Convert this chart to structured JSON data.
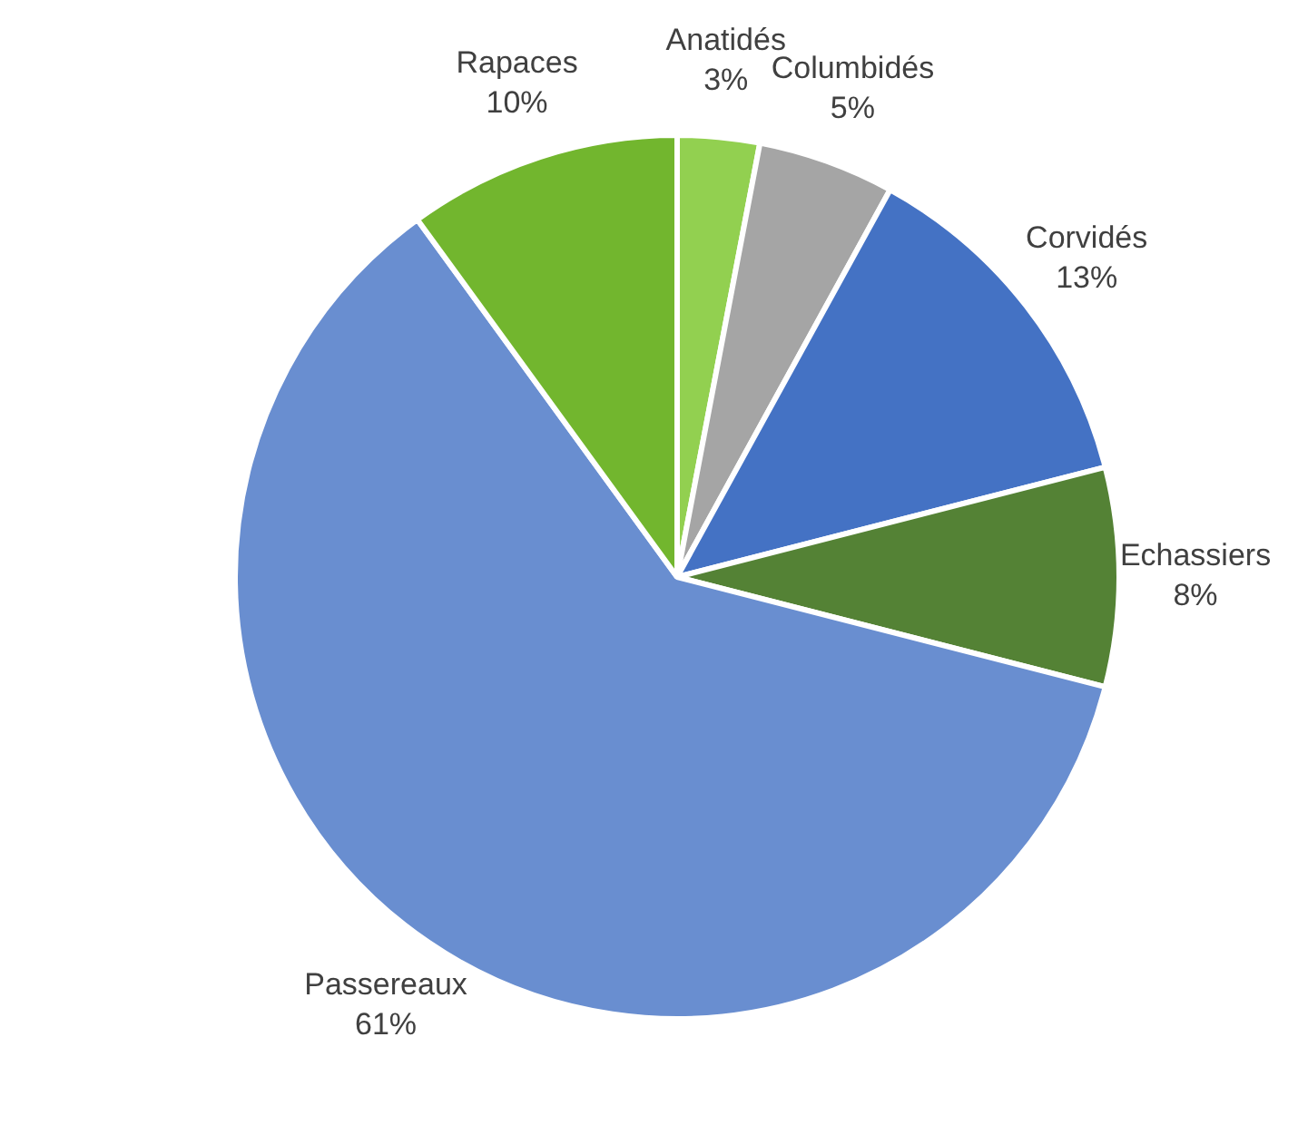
{
  "chart_data": {
    "type": "pie",
    "categories": [
      "Anatidés",
      "Columbidés",
      "Corvidés",
      "Echassiers",
      "Passereaux",
      "Rapaces"
    ],
    "values": [
      3,
      5,
      13,
      8,
      61,
      10
    ],
    "colors": [
      "#92d050",
      "#a5a5a5",
      "#4472c4",
      "#548235",
      "#698ed0",
      "#72b62e"
    ],
    "value_labels": [
      "3%",
      "5%",
      "13%",
      "8%",
      "61%",
      "10%"
    ],
    "legend": false
  }
}
